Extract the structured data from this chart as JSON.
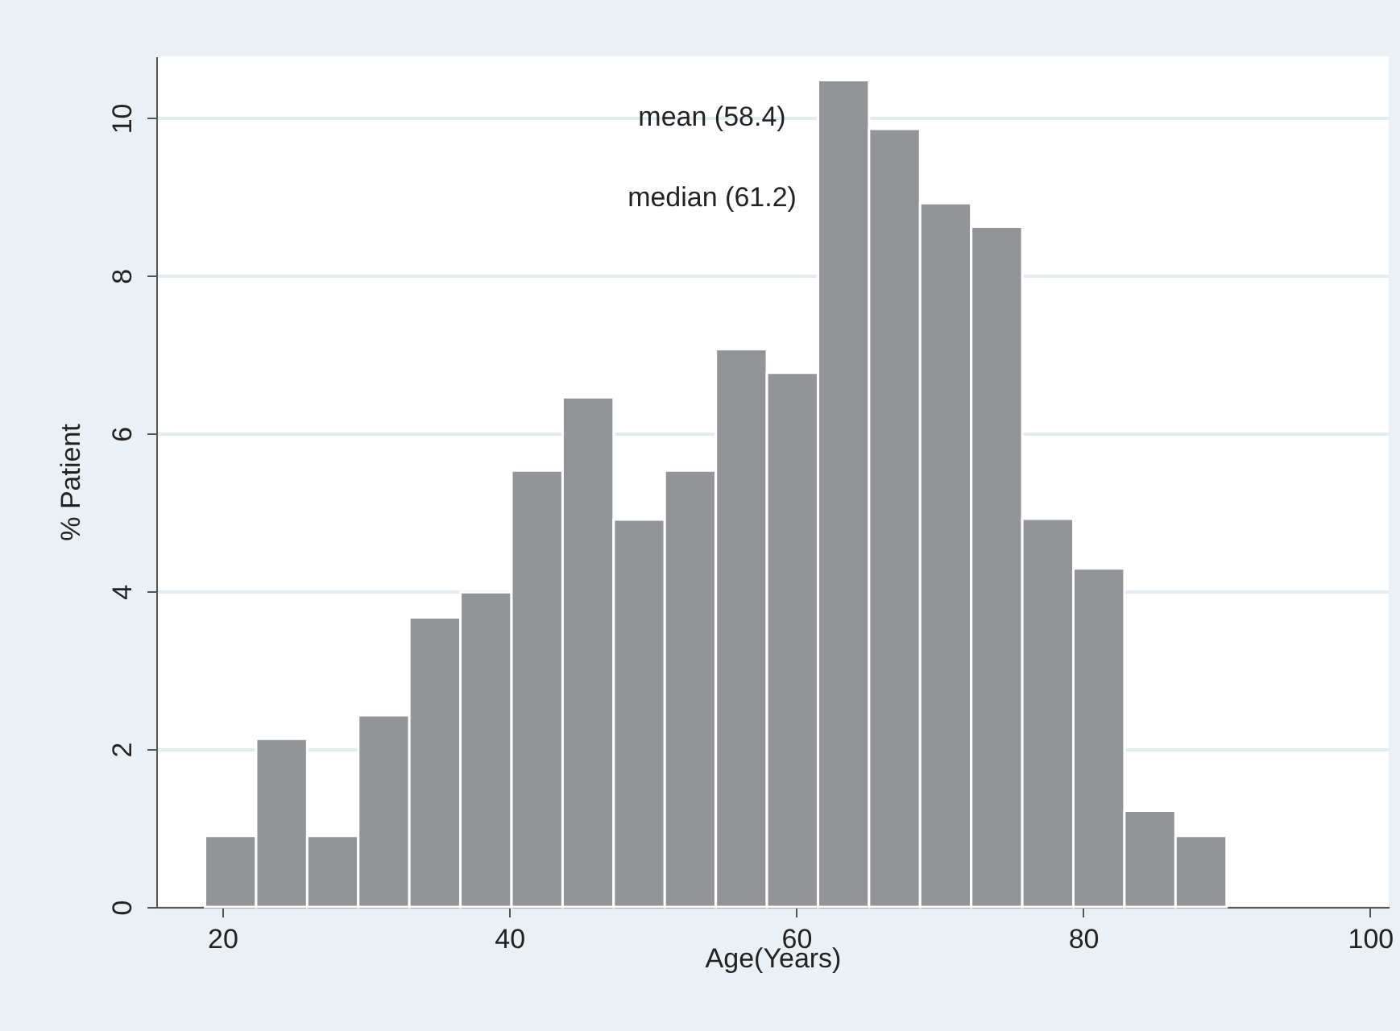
{
  "chart_data": {
    "type": "histogram",
    "xlabel": "Age(Years)",
    "ylabel": "% Patient",
    "bins": [
      18.8,
      22.36,
      25.92,
      29.48,
      33.04,
      36.6,
      40.16,
      43.72,
      47.28,
      50.84,
      54.4,
      57.96,
      61.52,
      65.08,
      68.64,
      72.2,
      75.76,
      79.32,
      82.88,
      86.44,
      90.0
    ],
    "values": [
      0.9,
      2.13,
      0.9,
      2.43,
      3.67,
      3.99,
      5.53,
      6.46,
      4.91,
      5.53,
      7.07,
      6.77,
      10.48,
      9.86,
      8.92,
      8.62,
      4.92,
      4.29,
      1.22,
      0.9
    ],
    "color": "#939498",
    "xlim": [
      15.4,
      101.3
    ],
    "xticks": [
      20,
      40,
      60,
      80,
      100
    ],
    "ylim": [
      0,
      10.78
    ],
    "yticks": [
      0,
      2,
      4,
      6,
      8,
      10
    ],
    "grid": "y",
    "annotations": [
      "mean (58.4)",
      "median (61.2)"
    ]
  }
}
